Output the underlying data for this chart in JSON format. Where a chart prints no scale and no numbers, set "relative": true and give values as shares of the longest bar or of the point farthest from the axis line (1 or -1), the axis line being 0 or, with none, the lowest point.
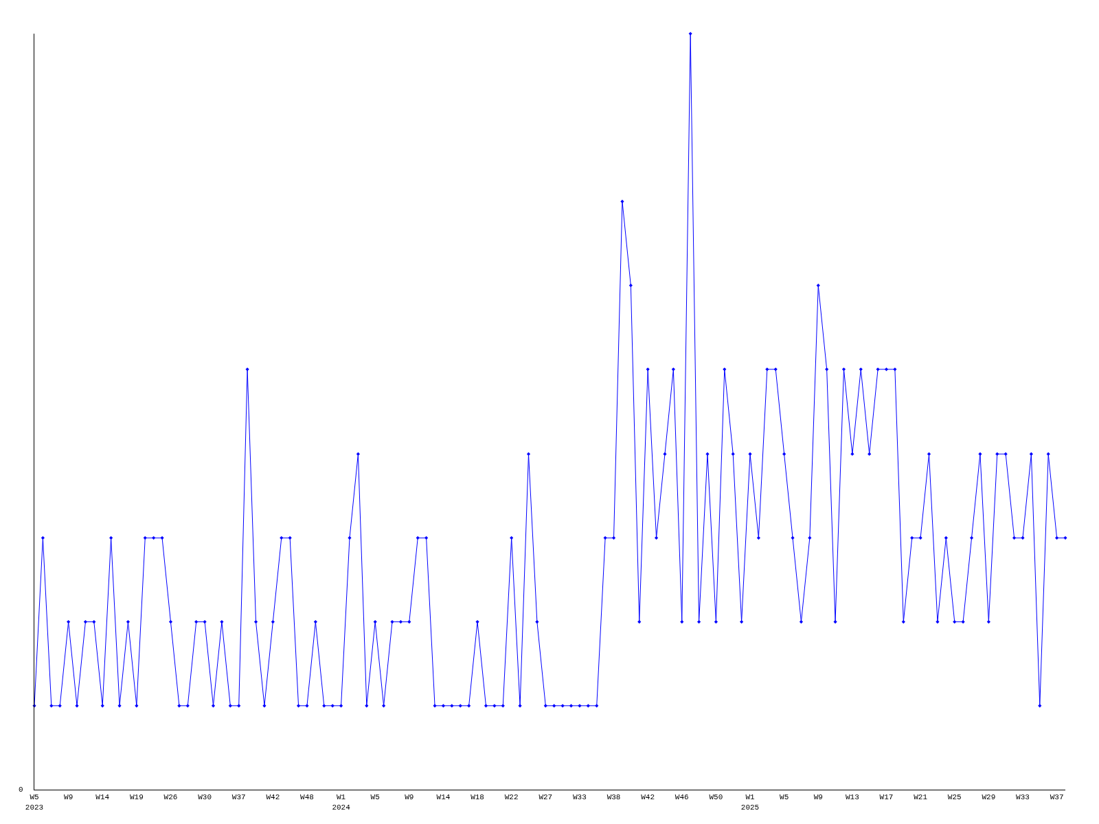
{
  "chart_data": {
    "type": "line",
    "relative": true,
    "color": "#0000ff",
    "marker": "diamond",
    "line_style": "solid",
    "grid": false,
    "annotations": [
      "0"
    ],
    "categories": [
      "W5\n2023",
      null,
      null,
      null,
      "W9",
      null,
      null,
      null,
      "W14",
      null,
      null,
      null,
      "W19",
      null,
      null,
      null,
      "W26",
      null,
      null,
      null,
      "W30",
      null,
      null,
      null,
      "W37",
      null,
      null,
      null,
      "W42",
      null,
      null,
      null,
      "W48",
      null,
      null,
      null,
      "W1\n2024",
      null,
      null,
      null,
      "W5",
      null,
      null,
      null,
      "W9",
      null,
      null,
      null,
      "W14",
      null,
      null,
      null,
      "W18",
      null,
      null,
      null,
      "W22",
      null,
      null,
      null,
      "W27",
      null,
      null,
      null,
      "W33",
      null,
      null,
      null,
      "W38",
      null,
      null,
      null,
      "W42",
      null,
      null,
      null,
      "W46",
      null,
      null,
      null,
      "W50",
      null,
      null,
      null,
      "W1\n2025",
      null,
      null,
      null,
      "W5",
      null,
      null,
      null,
      "W9",
      null,
      null,
      null,
      "W13",
      null,
      null,
      null,
      "W17",
      null,
      null,
      null,
      "W21",
      null,
      null,
      null,
      "W25",
      null,
      null,
      null,
      "W29",
      null,
      null,
      null,
      "W33",
      null,
      null,
      null,
      "W37",
      null
    ],
    "values": [
      0.111,
      0.333,
      0.111,
      0.111,
      0.222,
      0.111,
      0.222,
      0.222,
      0.111,
      0.333,
      0.111,
      0.222,
      0.111,
      0.333,
      0.333,
      0.333,
      0.222,
      0.111,
      0.111,
      0.222,
      0.222,
      0.111,
      0.222,
      0.111,
      0.111,
      0.556,
      0.222,
      0.111,
      0.222,
      0.333,
      0.333,
      0.111,
      0.111,
      0.222,
      0.111,
      0.111,
      0.111,
      0.333,
      0.444,
      0.111,
      0.222,
      0.111,
      0.222,
      0.222,
      0.222,
      0.333,
      0.333,
      0.111,
      0.111,
      0.111,
      0.111,
      0.111,
      0.222,
      0.111,
      0.111,
      0.111,
      0.333,
      0.111,
      0.444,
      0.222,
      0.111,
      0.111,
      0.111,
      0.111,
      0.111,
      0.111,
      0.111,
      0.333,
      0.333,
      0.778,
      0.667,
      0.222,
      0.556,
      0.333,
      0.444,
      0.556,
      0.222,
      1,
      0.222,
      0.444,
      0.222,
      0.556,
      0.444,
      0.222,
      0.444,
      0.333,
      0.556,
      0.556,
      0.444,
      0.333,
      0.222,
      0.333,
      0.667,
      0.556,
      0.222,
      0.556,
      0.444,
      0.556,
      0.444,
      0.556,
      0.556,
      0.556,
      0.222,
      0.333,
      0.333,
      0.444,
      0.222,
      0.333,
      0.222,
      0.222,
      0.333,
      0.444,
      0.222,
      0.444,
      0.444,
      0.333,
      0.333,
      0.444,
      0.111,
      0.444,
      0.333,
      0.333
    ]
  }
}
